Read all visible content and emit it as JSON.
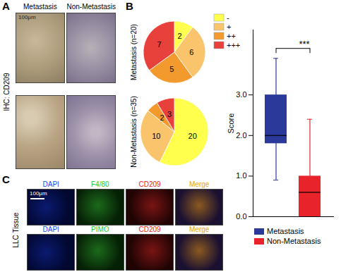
{
  "figure": {
    "panel_a": {
      "letter": "A",
      "columns": [
        "Metastasis",
        "Non-Metastasis"
      ],
      "row_label": "IHC: CD209",
      "scale_bar": "100μm"
    },
    "panel_b": {
      "letter": "B"
    },
    "panel_c": {
      "letter": "C",
      "row_label": "LLC Tissue",
      "scale_bar": "100μm",
      "rows": [
        [
          {
            "label": "DAPI",
            "color": "#1f3fff"
          },
          {
            "label": "F4/80",
            "color": "#22cc22"
          },
          {
            "label": "CD209",
            "color": "#ee2222"
          },
          {
            "label": "Merge",
            "color": "#f0a020"
          }
        ],
        [
          {
            "label": "DAPI",
            "color": "#1f3fff"
          },
          {
            "label": "PIMO",
            "color": "#22cc22"
          },
          {
            "label": "CD209",
            "color": "#ee2222"
          },
          {
            "label": "Merge",
            "color": "#f0a020"
          }
        ]
      ]
    }
  },
  "chart_data": [
    {
      "type": "pie",
      "title": "Metastasis (n=20)",
      "categories": [
        "-",
        "+",
        "++",
        "+++"
      ],
      "values": [
        2,
        6,
        5,
        7
      ],
      "colors": [
        "#ffff4d",
        "#f9c46b",
        "#f39a2e",
        "#e8403a"
      ],
      "data_labels": true,
      "legend": "right"
    },
    {
      "type": "pie",
      "title": "Non-Metastasis (n=35)",
      "categories": [
        "-",
        "+",
        "++",
        "+++"
      ],
      "values": [
        20,
        10,
        2,
        3
      ],
      "colors": [
        "#ffff4d",
        "#f9c46b",
        "#f39a2e",
        "#e8403a"
      ],
      "data_labels": true
    },
    {
      "type": "box",
      "ylabel": "Score",
      "categories": [
        "Metastasis",
        "Non-Metastasis"
      ],
      "boxes": [
        {
          "name": "Metastasis",
          "color": "#2b3a9a",
          "min": 0.9,
          "q1": 1.8,
          "median": 2.0,
          "q3": 3.0,
          "max": 3.9
        },
        {
          "name": "Non-Metastasis",
          "color": "#e8242a",
          "min": 0,
          "q1": 0,
          "median": 0.6,
          "q3": 1.0,
          "max": 2.4
        }
      ],
      "annotations": [
        "***"
      ],
      "ylim": [
        0,
        4.6
      ],
      "yticks": [
        0,
        1,
        2,
        3
      ],
      "tick_labels": "y",
      "legend": "bottom"
    }
  ]
}
